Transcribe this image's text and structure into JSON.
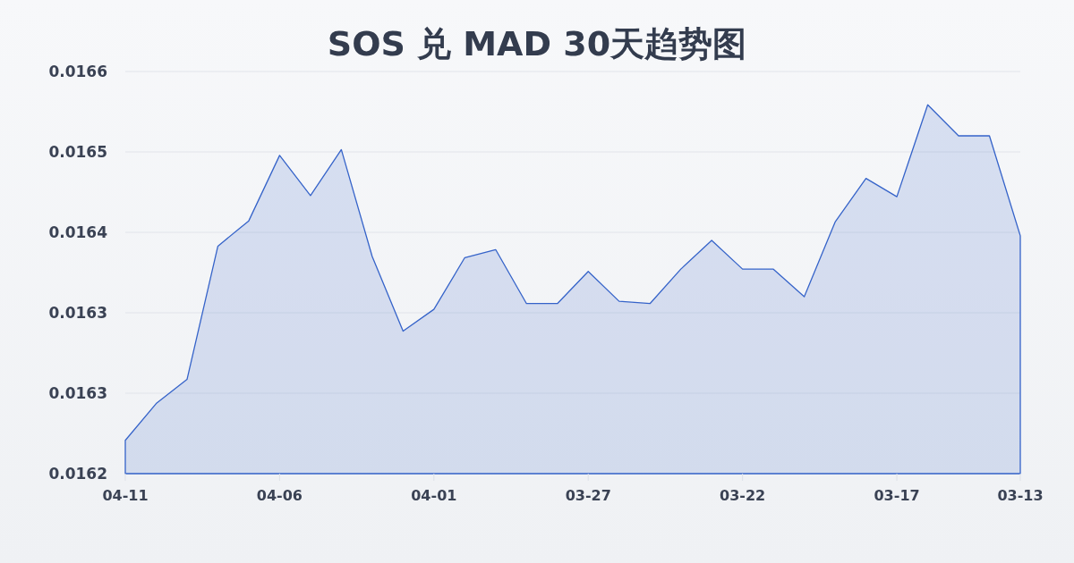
{
  "chart_data": {
    "type": "area",
    "title": "SOS 兑 MAD 30天趋势图",
    "categories": [
      "04-11",
      null,
      null,
      null,
      null,
      "04-06",
      null,
      null,
      null,
      null,
      "04-01",
      null,
      null,
      null,
      null,
      "03-27",
      null,
      null,
      null,
      null,
      "03-22",
      null,
      null,
      null,
      null,
      "03-17",
      null,
      null,
      null,
      "03-13"
    ],
    "values": [
      0.016229,
      0.016261,
      0.016282,
      0.016398,
      0.01642,
      0.016477,
      0.016442,
      0.016482,
      0.016389,
      0.016324,
      0.016343,
      0.016388,
      0.016395,
      0.016348,
      0.016348,
      0.016376,
      0.01635,
      0.016348,
      0.016378,
      0.016403,
      0.016378,
      0.016378,
      0.016354,
      0.016419,
      0.016457,
      0.016441,
      0.016521,
      0.016494,
      0.016494,
      0.016407
    ],
    "color": "#3563c9",
    "ylim": [
      0.0162,
      0.01655
    ],
    "yticks": [
      0.0162,
      {
        "value": 0.01627,
        "label": "0.0163"
      },
      {
        "value": 0.01634,
        "label": "0.0163"
      },
      {
        "value": 0.01641,
        "label": "0.0164"
      },
      {
        "value": 0.01648,
        "label": "0.0165"
      },
      {
        "value": 0.01655,
        "label": "0.0166"
      }
    ],
    "grid": "y"
  }
}
